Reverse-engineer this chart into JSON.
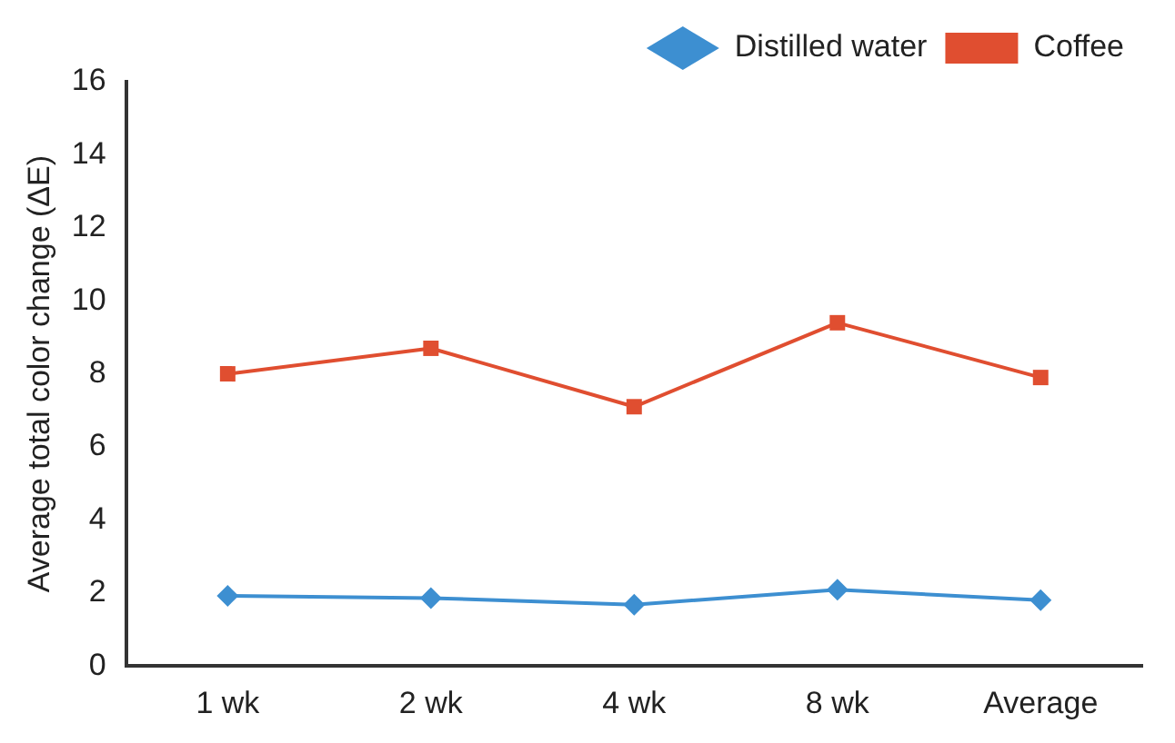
{
  "chart_data": {
    "type": "line",
    "ylabel": "Average total color change (ΔE)",
    "categories": [
      "1 wk",
      "2 wk",
      "4 wk",
      "8 wk",
      "Average"
    ],
    "series": [
      {
        "name": "Distilled water",
        "color": "#3d8fd1",
        "marker": "diamond",
        "values": [
          1.92,
          1.86,
          1.68,
          2.09,
          1.8
        ]
      },
      {
        "name": "Coffee",
        "color": "#e04e30",
        "marker": "square",
        "values": [
          8.0,
          8.7,
          7.1,
          9.4,
          7.9
        ]
      }
    ],
    "ylim": [
      0,
      16
    ],
    "yticks": [
      0,
      2,
      4,
      6,
      8,
      10,
      12,
      14,
      16
    ],
    "grid": false,
    "legend": "top right"
  }
}
